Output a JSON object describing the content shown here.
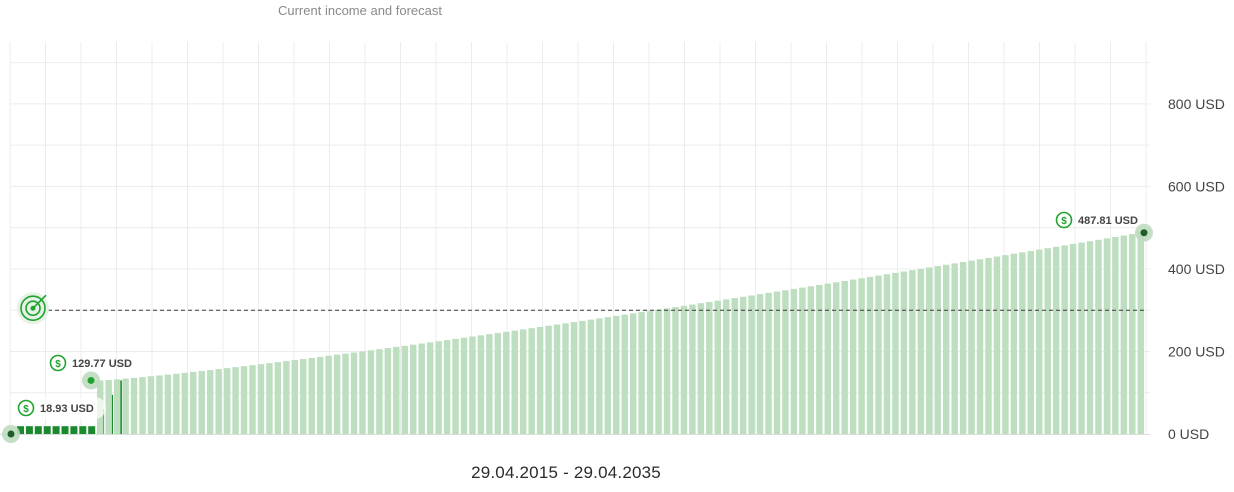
{
  "chart_data": {
    "type": "bar",
    "title": "Current income and forecast",
    "date_range": "29.04.2015 - 29.04.2035",
    "ylim": [
      0,
      950
    ],
    "y_ticks": [
      {
        "value": 0,
        "label": "0 USD"
      },
      {
        "value": 200,
        "label": "200 USD"
      },
      {
        "value": 400,
        "label": "400 USD"
      },
      {
        "value": 600,
        "label": "600 USD"
      },
      {
        "value": 800,
        "label": "800 USD"
      }
    ],
    "target_value": 300,
    "current_series": [
      0,
      18.93,
      18.93,
      18.93,
      18.93,
      18.93,
      18.93,
      18.93,
      18.93,
      18.93,
      60,
      95,
      129.77
    ],
    "forecast_start": 129.77,
    "forecast_end": 487.81,
    "forecast_bar_count": 124,
    "annotations": [
      {
        "label": "18.93 USD",
        "value": 18.93
      },
      {
        "label": "129.77 USD",
        "value": 129.77
      },
      {
        "label": "487.81 USD",
        "value": 487.81
      }
    ],
    "grid": true,
    "colors": {
      "current": "#1b8a2e",
      "forecast": "#bddfbf",
      "grid": "#ececec",
      "target_line": "#3a3a3a",
      "badge": "#1fa32f",
      "axis_text": "#444444"
    }
  }
}
